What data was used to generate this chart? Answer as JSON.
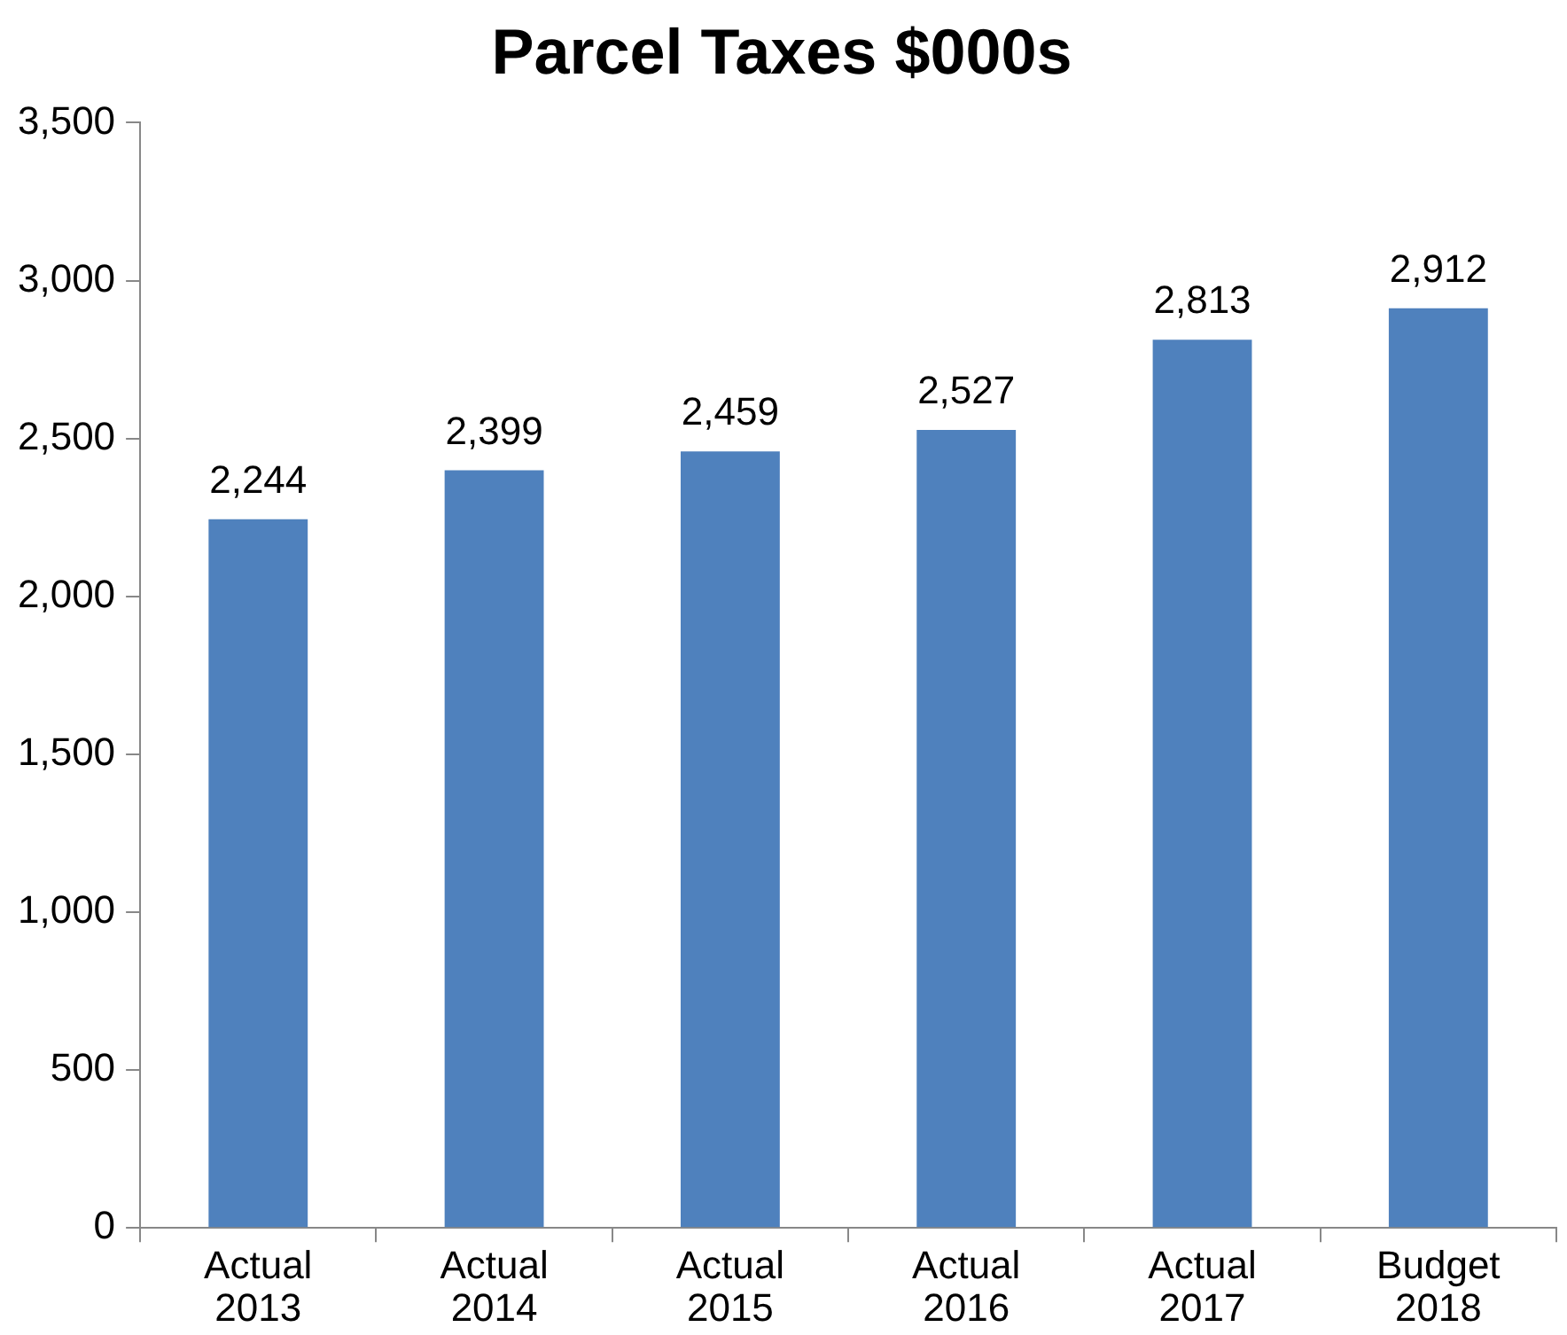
{
  "chart_data": {
    "type": "bar",
    "title": "Parcel Taxes $000s",
    "categories": [
      "Actual 2013",
      "Actual 2014",
      "Actual 2015",
      "Actual 2016",
      "Actual 2017",
      "Budget 2018"
    ],
    "values": [
      2244,
      2399,
      2459,
      2527,
      2813,
      2912
    ],
    "color": "#4f81bd",
    "ylim": [
      0,
      3500
    ],
    "yticks": [
      {
        "value": 0,
        "label": "0"
      },
      {
        "value": 500,
        "label": "500"
      },
      {
        "value": 1000,
        "label": "1,000"
      },
      {
        "value": 1500,
        "label": "1,500"
      },
      {
        "value": 2000,
        "label": "2,000"
      },
      {
        "value": 2500,
        "label": "2,500"
      },
      {
        "value": 3000,
        "label": "3,000"
      },
      {
        "value": 3500,
        "label": "3,500"
      }
    ],
    "value_labels": [
      "2,244",
      "2,399",
      "2,459",
      "2,527",
      "2,813",
      "2,912"
    ],
    "grid": false,
    "legend": false
  }
}
